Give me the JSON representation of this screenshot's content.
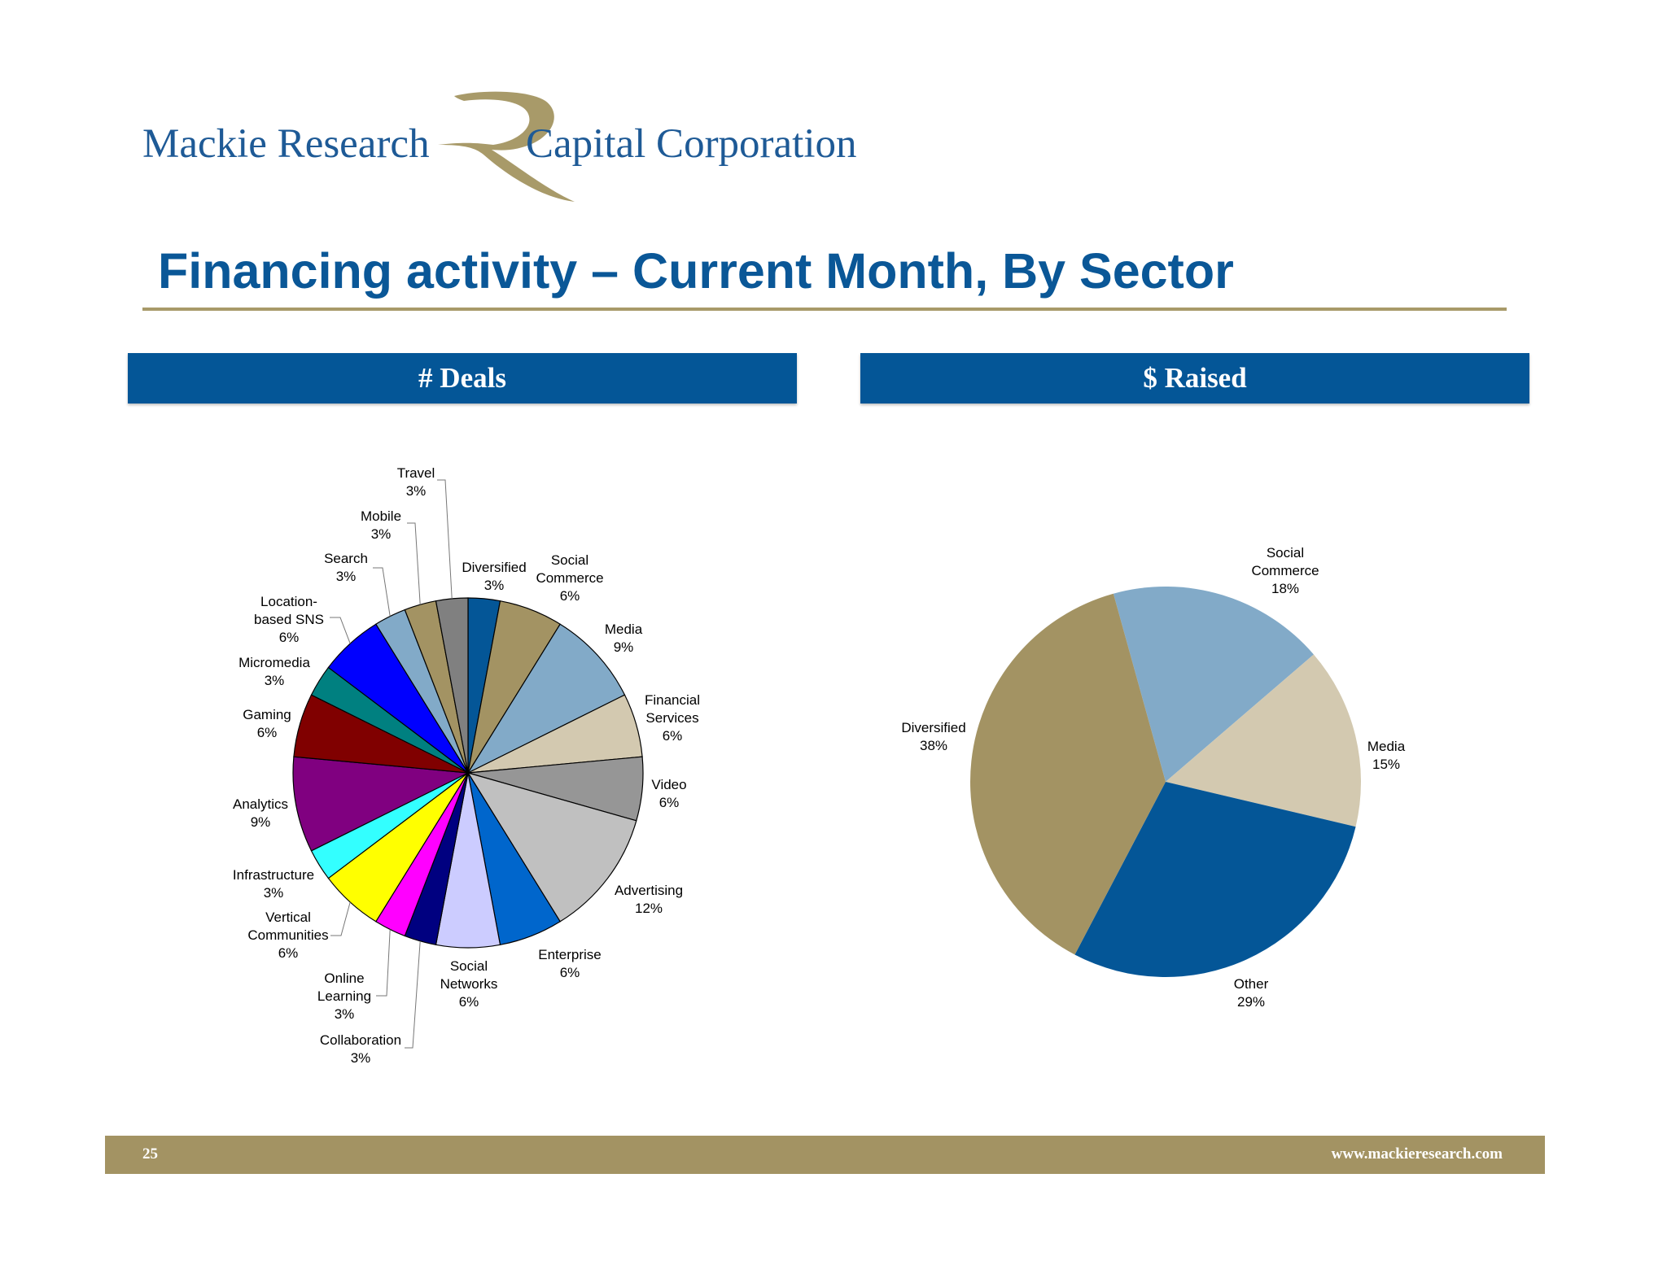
{
  "logo": {
    "left_text": "Mackie Research",
    "right_text": "Capital Corporation",
    "mark_color": "#a89a69",
    "text_color": "#1e5a96"
  },
  "slide": {
    "title": "Financing activity – Current Month, By Sector",
    "page_number": "25",
    "website": "www.mackieresearch.com"
  },
  "chart_data": [
    {
      "type": "pie",
      "title": "# Deals",
      "slices": [
        {
          "label": "Diversified",
          "value_label": "3%",
          "value": 3,
          "color": "#045697"
        },
        {
          "label": "Social Commerce",
          "value_label": "6%",
          "value": 6,
          "color": "#a39363"
        },
        {
          "label": "Media",
          "value_label": "9%",
          "value": 9,
          "color": "#82aac8"
        },
        {
          "label": "Financial Services",
          "value_label": "6%",
          "value": 6,
          "color": "#d3c9b0"
        },
        {
          "label": "Video",
          "value_label": "6%",
          "value": 6,
          "color": "#969696"
        },
        {
          "label": "Advertising",
          "value_label": "12%",
          "value": 12,
          "color": "#c0c0c0"
        },
        {
          "label": "Enterprise",
          "value_label": "6%",
          "value": 6,
          "color": "#0066cc"
        },
        {
          "label": "Social Networks",
          "value_label": "6%",
          "value": 6,
          "color": "#ccccff"
        },
        {
          "label": "Collaboration",
          "value_label": "3%",
          "value": 3,
          "color": "#000080"
        },
        {
          "label": "Online Learning",
          "value_label": "3%",
          "value": 3,
          "color": "#ff00ff"
        },
        {
          "label": "Vertical Communities",
          "value_label": "6%",
          "value": 6,
          "color": "#ffff00"
        },
        {
          "label": "Infrastructure",
          "value_label": "3%",
          "value": 3,
          "color": "#33ffff"
        },
        {
          "label": "Analytics",
          "value_label": "9%",
          "value": 9,
          "color": "#800080"
        },
        {
          "label": "Gaming",
          "value_label": "6%",
          "value": 6,
          "color": "#800000"
        },
        {
          "label": "Micromedia",
          "value_label": "3%",
          "value": 3,
          "color": "#008080"
        },
        {
          "label": "Location-based SNS",
          "value_label": "6%",
          "value": 6,
          "color": "#0000ff"
        },
        {
          "label": "Search",
          "value_label": "3%",
          "value": 3,
          "color": "#82aac8"
        },
        {
          "label": "Mobile",
          "value_label": "3%",
          "value": 3,
          "color": "#a39363"
        },
        {
          "label": "Travel",
          "value_label": "3%",
          "value": 3,
          "color": "#808080"
        }
      ]
    },
    {
      "type": "pie",
      "title": "$ Raised",
      "slices": [
        {
          "label": "Social Commerce",
          "value_label": "18%",
          "value": 18,
          "color": "#82aac8"
        },
        {
          "label": "Media",
          "value_label": "15%",
          "value": 15,
          "color": "#d3c9b0"
        },
        {
          "label": "Other",
          "value_label": "29%",
          "value": 29,
          "color": "#045697"
        },
        {
          "label": "Diversified",
          "value_label": "38%",
          "value": 38,
          "color": "#a39363"
        }
      ]
    }
  ]
}
